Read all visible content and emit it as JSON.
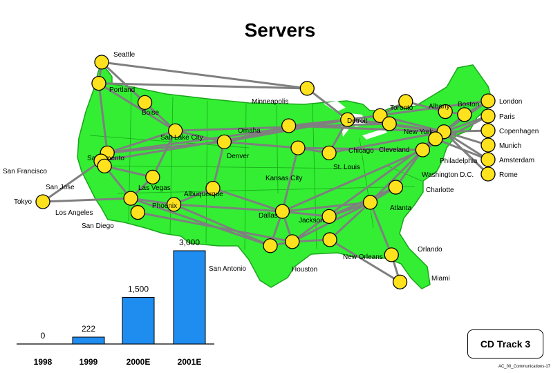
{
  "page": {
    "title": "Servers",
    "badge": "CD Track 3",
    "footer": "AC_00_Communications-17"
  },
  "colors": {
    "land": "#33ee33",
    "route": "#7f7f7f",
    "node_fill": "#ffe21e",
    "node_stroke": "#000000",
    "bar": "#1f8cf0"
  },
  "cities": [
    {
      "name": "Seattle",
      "lon": -122.3,
      "lat": 47.6
    },
    {
      "name": "Portland",
      "lon": -122.7,
      "lat": 45.5
    },
    {
      "name": "Boise",
      "lon": -116.2,
      "lat": 43.6
    },
    {
      "name": "Salt Lake City",
      "lon": -111.9,
      "lat": 40.8
    },
    {
      "name": "Sacramento",
      "lon": -121.5,
      "lat": 38.6
    },
    {
      "name": "San Francisco",
      "lon": -122.4,
      "lat": 37.8
    },
    {
      "name": "San Jose",
      "lon": -121.9,
      "lat": 37.3
    },
    {
      "name": "Las Vegas",
      "lon": -115.1,
      "lat": 36.2
    },
    {
      "name": "Los Angeles",
      "lon": -118.2,
      "lat": 34.1
    },
    {
      "name": "San Diego",
      "lon": -117.2,
      "lat": 32.7
    },
    {
      "name": "Phoenix",
      "lon": -112.1,
      "lat": 33.5
    },
    {
      "name": "Albuquerque",
      "lon": -106.6,
      "lat": 35.1
    },
    {
      "name": "Denver",
      "lon": -105.0,
      "lat": 39.7
    },
    {
      "name": "Minneapolis",
      "lon": -93.3,
      "lat": 45.0
    },
    {
      "name": "Omaha",
      "lon": -95.9,
      "lat": 41.3
    },
    {
      "name": "Kansas City",
      "lon": -94.6,
      "lat": 39.1
    },
    {
      "name": "Dallas",
      "lon": -96.8,
      "lat": 32.8
    },
    {
      "name": "San Antonio",
      "lon": -98.5,
      "lat": 29.4
    },
    {
      "name": "Houston",
      "lon": -95.4,
      "lat": 29.8
    },
    {
      "name": "New Orleans",
      "lon": -90.1,
      "lat": 30.0
    },
    {
      "name": "Jackson",
      "lon": -90.2,
      "lat": 32.3
    },
    {
      "name": "St. Louis",
      "lon": -90.2,
      "lat": 38.6
    },
    {
      "name": "Chicago",
      "lon": -87.6,
      "lat": 41.9
    },
    {
      "name": "Detroit",
      "lon": -83.0,
      "lat": 42.3
    },
    {
      "name": "Cleveland",
      "lon": -81.7,
      "lat": 41.5
    },
    {
      "name": "Toronto",
      "lon": -79.4,
      "lat": 43.7
    },
    {
      "name": "Albany",
      "lon": -73.8,
      "lat": 42.7
    },
    {
      "name": "Boston",
      "lon": -71.1,
      "lat": 42.4
    },
    {
      "name": "New York",
      "lon": -74.0,
      "lat": 40.7
    },
    {
      "name": "Philadelphia",
      "lon": -75.2,
      "lat": 40.0
    },
    {
      "name": "Washington D.C.",
      "lon": -77.0,
      "lat": 38.9
    },
    {
      "name": "Charlotte",
      "lon": -80.8,
      "lat": 35.2
    },
    {
      "name": "Atlanta",
      "lon": -84.4,
      "lat": 33.7
    },
    {
      "name": "Orlando",
      "lon": -81.4,
      "lat": 28.5
    },
    {
      "name": "Miami",
      "lon": -80.2,
      "lat": 25.8
    }
  ],
  "overseas": [
    "Tokyo",
    "London",
    "Paris",
    "Copenhagen",
    "Munich",
    "Amsterdam",
    "Rome"
  ],
  "routes": [
    [
      "Seattle",
      "Portland"
    ],
    [
      "Portland",
      "Sacramento"
    ],
    [
      "Sacramento",
      "San Francisco"
    ],
    [
      "San Francisco",
      "San Jose"
    ],
    [
      "San Jose",
      "Los Angeles"
    ],
    [
      "Los Angeles",
      "San Diego"
    ],
    [
      "Seattle",
      "Boise"
    ],
    [
      "Boise",
      "Salt Lake City"
    ],
    [
      "Portland",
      "Salt Lake City"
    ],
    [
      "Salt Lake City",
      "Sacramento"
    ],
    [
      "Salt Lake City",
      "Denver"
    ],
    [
      "Sacramento",
      "Denver"
    ],
    [
      "San Jose",
      "Las Vegas"
    ],
    [
      "Las Vegas",
      "Salt Lake City"
    ],
    [
      "Los Angeles",
      "Phoenix"
    ],
    [
      "Los Angeles",
      "Las Vegas"
    ],
    [
      "Phoenix",
      "Albuquerque"
    ],
    [
      "Albuquerque",
      "Dallas"
    ],
    [
      "Phoenix",
      "Dallas"
    ],
    [
      "Denver",
      "Kansas City"
    ],
    [
      "Denver",
      "Omaha"
    ],
    [
      "Omaha",
      "Chicago"
    ],
    [
      "Minneapolis",
      "Chicago"
    ],
    [
      "Seattle",
      "Minneapolis"
    ],
    [
      "Portland",
      "Minneapolis"
    ],
    [
      "Kansas City",
      "St. Louis"
    ],
    [
      "St. Louis",
      "Chicago"
    ],
    [
      "Chicago",
      "Detroit"
    ],
    [
      "Detroit",
      "Toronto"
    ],
    [
      "Chicago",
      "Cleveland"
    ],
    [
      "Cleveland",
      "New York"
    ],
    [
      "Toronto",
      "Albany"
    ],
    [
      "Albany",
      "Boston"
    ],
    [
      "Boston",
      "New York"
    ],
    [
      "New York",
      "Philadelphia"
    ],
    [
      "Philadelphia",
      "Washington D.C."
    ],
    [
      "Washington D.C.",
      "Charlotte"
    ],
    [
      "Charlotte",
      "Atlanta"
    ],
    [
      "Atlanta",
      "Orlando"
    ],
    [
      "Orlando",
      "Miami"
    ],
    [
      "Atlanta",
      "New Orleans"
    ],
    [
      "New Orleans",
      "Houston"
    ],
    [
      "Houston",
      "San Antonio"
    ],
    [
      "San Antonio",
      "Dallas"
    ],
    [
      "Dallas",
      "Houston"
    ],
    [
      "Dallas",
      "Jackson"
    ],
    [
      "Jackson",
      "Atlanta"
    ],
    [
      "Dallas",
      "Kansas City"
    ],
    [
      "Dallas",
      "Atlanta"
    ],
    [
      "Houston",
      "Atlanta"
    ],
    [
      "San Antonio",
      "Phoenix"
    ],
    [
      "Los Angeles",
      "San Antonio"
    ],
    [
      "San Diego",
      "Houston"
    ],
    [
      "Denver",
      "Chicago"
    ],
    [
      "San Francisco",
      "Chicago"
    ],
    [
      "Sacramento",
      "Chicago"
    ],
    [
      "Salt Lake City",
      "Cleveland"
    ],
    [
      "Omaha",
      "New York"
    ],
    [
      "Kansas City",
      "Washington D.C."
    ],
    [
      "St. Louis",
      "New York"
    ],
    [
      "Dallas",
      "Washington D.C."
    ],
    [
      "Houston",
      "New York"
    ],
    [
      "New Orleans",
      "Miami"
    ],
    [
      "Jackson",
      "Charlotte"
    ],
    [
      "Chicago",
      "New York"
    ],
    [
      "Detroit",
      "New York"
    ],
    [
      "Atlanta",
      "Washington D.C."
    ],
    [
      "Albuquerque",
      "Denver"
    ],
    [
      "Tokyo",
      "Los Angeles"
    ],
    [
      "Tokyo",
      "San Francisco"
    ],
    [
      "New York",
      "London"
    ],
    [
      "New York",
      "Paris"
    ],
    [
      "New York",
      "Copenhagen"
    ],
    [
      "New York",
      "Munich"
    ],
    [
      "New York",
      "Amsterdam"
    ],
    [
      "New York",
      "Rome"
    ],
    [
      "Boston",
      "London"
    ],
    [
      "Washington D.C.",
      "Paris"
    ],
    [
      "Philadelphia",
      "Amsterdam"
    ],
    [
      "Chicago",
      "London"
    ]
  ],
  "chart_data": {
    "type": "bar",
    "categories": [
      "1998",
      "1999",
      "2000E",
      "2001E"
    ],
    "values": [
      0,
      222,
      1500,
      3000
    ],
    "value_labels": [
      "0",
      "222",
      "1,500",
      "3,000"
    ],
    "title": "",
    "xlabel": "",
    "ylabel": "",
    "ylim": [
      0,
      3000
    ]
  }
}
